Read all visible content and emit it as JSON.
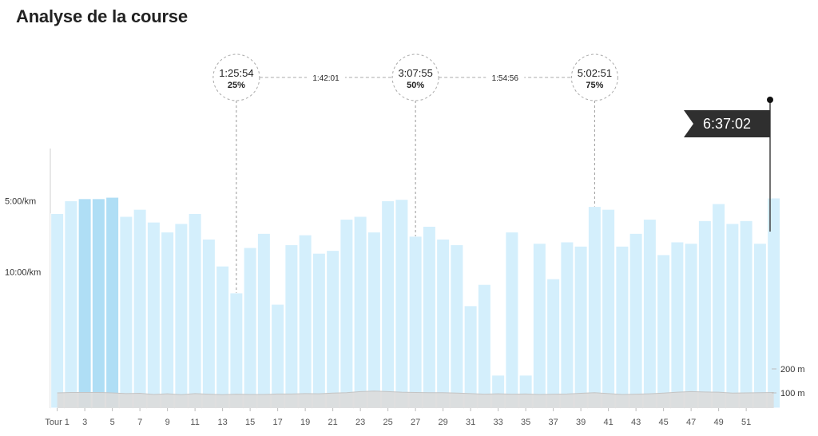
{
  "title": "Analyse de la course",
  "chart_data": {
    "type": "bar",
    "categories": [
      "Tour 1",
      "2",
      "3",
      "4",
      "5",
      "6",
      "7",
      "8",
      "9",
      "10",
      "11",
      "12",
      "13",
      "14",
      "15",
      "16",
      "17",
      "18",
      "19",
      "20",
      "21",
      "22",
      "23",
      "24",
      "25",
      "26",
      "27",
      "28",
      "29",
      "30",
      "31",
      "32",
      "33",
      "34",
      "35",
      "36",
      "37",
      "38",
      "39",
      "40",
      "41",
      "42",
      "43",
      "44",
      "45",
      "46",
      "47",
      "48",
      "49",
      "50",
      "51",
      "52",
      "53"
    ],
    "x_tick_labels": [
      "Tour 1",
      "3",
      "5",
      "7",
      "9",
      "11",
      "13",
      "15",
      "17",
      "19",
      "21",
      "23",
      "25",
      "27",
      "29",
      "31",
      "33",
      "35",
      "37",
      "39",
      "41",
      "43",
      "45",
      "47",
      "49",
      "51"
    ],
    "series": [
      {
        "pace_min_per_km": [
          5.9,
          5.0,
          4.85,
          4.85,
          4.75,
          6.1,
          5.6,
          6.5,
          7.2,
          6.6,
          5.9,
          7.7,
          9.6,
          11.5,
          8.3,
          7.3,
          12.3,
          8.1,
          7.4,
          8.7,
          8.5,
          6.3,
          6.1,
          7.2,
          5.0,
          4.9,
          7.5,
          6.8,
          7.7,
          8.1,
          12.4,
          10.9,
          17.3,
          7.2,
          17.3,
          8.0,
          10.5,
          7.9,
          8.2,
          5.4,
          5.6,
          8.2,
          7.3,
          6.3,
          8.8,
          7.9,
          8.0,
          6.4,
          5.2,
          6.6,
          6.4,
          8.0,
          4.8
        ],
        "elevation_m": [
          100,
          102,
          102,
          102,
          100,
          97,
          98,
          93,
          96,
          92,
          97,
          94,
          92,
          94,
          93,
          93,
          95,
          95,
          97,
          96,
          99,
          101,
          106,
          108,
          106,
          103,
          102,
          101,
          101,
          99,
          97,
          94,
          96,
          94,
          95,
          93,
          94,
          95,
          98,
          101,
          97,
          93,
          94,
          96,
          99,
          103,
          106,
          104,
          103,
          99,
          100,
          101,
          102
        ]
      }
    ],
    "y_axis": {
      "label_ticks": [
        "5:00/km",
        "10:00/km"
      ],
      "tick_values_min_per_km": [
        5,
        10
      ],
      "inverted": true
    },
    "y2_axis": {
      "label_ticks": [
        "200 m",
        "100 m"
      ],
      "tick_values_m": [
        200,
        100
      ]
    },
    "milestones": [
      {
        "time": "1:25:54",
        "percent": "25%",
        "lap": 14
      },
      {
        "time": "3:07:55",
        "percent": "50%",
        "lap": 27
      },
      {
        "time": "5:02:51",
        "percent": "75%",
        "lap": 40
      }
    ],
    "segments": [
      "1:42:01",
      "1:54:56"
    ],
    "finish_time": "6:37:02",
    "colors": {
      "bar": "#d4effc",
      "bar_highlight": "#afdef5",
      "bar_edge": "#ffffff",
      "elevation": "#dcdcdc",
      "flag": "#2f2f2f"
    }
  }
}
